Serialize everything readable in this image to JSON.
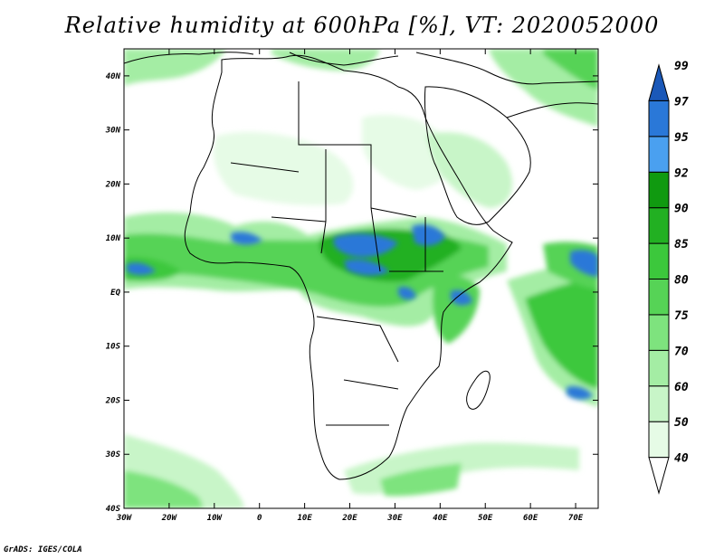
{
  "title": "Relative humidity at 600hPa [%], VT: 2020052000",
  "credit": "GrADS: IGES/COLA",
  "map": {
    "lon_range": [
      -30,
      75
    ],
    "lat_range": [
      -40,
      45
    ],
    "lat_ticks": [
      {
        "value": 40,
        "label": "40N"
      },
      {
        "value": 30,
        "label": "30N"
      },
      {
        "value": 20,
        "label": "20N"
      },
      {
        "value": 10,
        "label": "10N"
      },
      {
        "value": 0,
        "label": "EQ"
      },
      {
        "value": -10,
        "label": "10S"
      },
      {
        "value": -20,
        "label": "20S"
      },
      {
        "value": -30,
        "label": "30S"
      },
      {
        "value": -40,
        "label": "40S"
      }
    ],
    "lon_ticks": [
      {
        "value": -30,
        "label": "30W"
      },
      {
        "value": -20,
        "label": "20W"
      },
      {
        "value": -10,
        "label": "10W"
      },
      {
        "value": 0,
        "label": "0"
      },
      {
        "value": 10,
        "label": "10E"
      },
      {
        "value": 20,
        "label": "20E"
      },
      {
        "value": 30,
        "label": "30E"
      },
      {
        "value": 40,
        "label": "40E"
      },
      {
        "value": 50,
        "label": "50E"
      },
      {
        "value": 60,
        "label": "60E"
      },
      {
        "value": 70,
        "label": "70E"
      }
    ]
  },
  "colorbar": {
    "levels": [
      "40",
      "50",
      "60",
      "70",
      "75",
      "80",
      "85",
      "90",
      "92",
      "95",
      "97",
      "99"
    ],
    "colors": [
      "#ffffff",
      "#e6fbe6",
      "#c8f5c8",
      "#a4eda4",
      "#7ee37e",
      "#56d356",
      "#3cc83c",
      "#22b022",
      "#109a10",
      "#4aa0f0",
      "#2a78d8",
      "#1a58b8"
    ]
  }
}
